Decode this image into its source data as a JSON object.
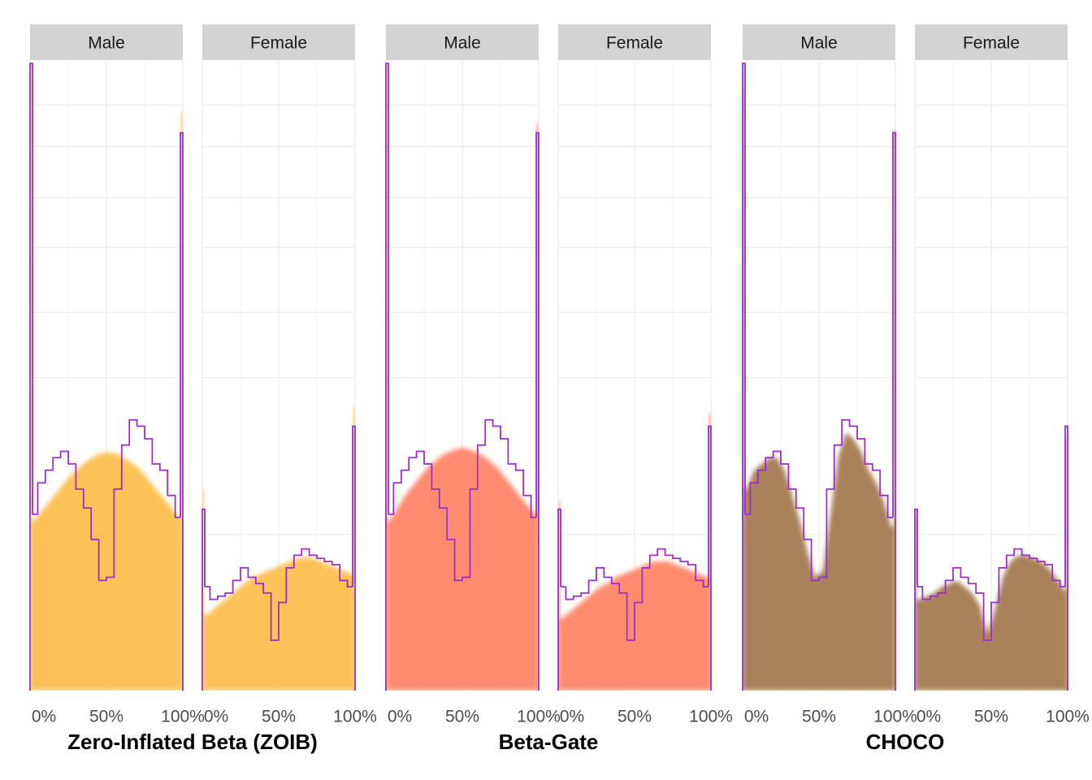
{
  "chart_data": [
    {
      "type": "area-step",
      "title": "Zero-Inflated Beta (ZOIB)",
      "color": "#fdbf4f",
      "line_color": "#9b30c8",
      "xlim": [
        0,
        100
      ],
      "ylim": [
        0,
        100
      ],
      "xticks": [
        {
          "value": 0,
          "label": "0%"
        },
        {
          "value": 50,
          "label": "50%"
        },
        {
          "value": 100,
          "label": "100%"
        }
      ],
      "y_grid": [
        24.8,
        49.7,
        60.1,
        70.4,
        78.3,
        86.4,
        93.0
      ],
      "bins": [
        0,
        5,
        10,
        15,
        20,
        25,
        30,
        35,
        40,
        45,
        50,
        55,
        60,
        65,
        70,
        75,
        80,
        85,
        90,
        95,
        100
      ],
      "panels": [
        {
          "label": "Male",
          "zero": 99.6,
          "one": 88.6,
          "predicted_zero": 99.6,
          "predicted_one": 92,
          "observed": [
            28,
            33,
            35,
            37,
            38,
            36,
            32,
            29,
            24,
            17.5,
            18,
            32,
            39,
            43,
            42,
            40,
            36,
            35,
            31,
            27.5
          ],
          "predicted": [
            27,
            28.5,
            30,
            31.5,
            33,
            34.5,
            35.5,
            36.5,
            37.3,
            37.8,
            37.8,
            37.5,
            36.8,
            36,
            35,
            33.5,
            32,
            30.5,
            29,
            27.5
          ]
        },
        {
          "label": "Female",
          "zero": 28.8,
          "one": 42,
          "predicted_zero": 32,
          "predicted_one": 45,
          "observed": [
            16.5,
            14.5,
            15,
            15.5,
            17.5,
            19.5,
            18,
            17,
            15.5,
            8,
            14,
            19.5,
            21.5,
            22.5,
            21.5,
            21,
            20.5,
            20,
            17.5,
            16.5
          ],
          "predicted": [
            12,
            13,
            14,
            15,
            16,
            17,
            18,
            18.5,
            19,
            19.5,
            20,
            20.5,
            21,
            21.2,
            21,
            20.5,
            20,
            19.5,
            19,
            18.5
          ]
        }
      ]
    },
    {
      "type": "area-step",
      "title": "Beta-Gate",
      "color": "#fe8567",
      "line_color": "#9b30c8",
      "xlim": [
        0,
        100
      ],
      "ylim": [
        0,
        100
      ],
      "xticks": [
        {
          "value": 0,
          "label": "0%"
        },
        {
          "value": 50,
          "label": "50%"
        },
        {
          "value": 100,
          "label": "100%"
        }
      ],
      "y_grid": [
        24.8,
        49.7,
        60.1,
        70.4,
        78.3,
        86.4,
        93.0
      ],
      "bins": [
        0,
        5,
        10,
        15,
        20,
        25,
        30,
        35,
        40,
        45,
        50,
        55,
        60,
        65,
        70,
        75,
        80,
        85,
        90,
        95,
        100
      ],
      "panels": [
        {
          "label": "Male",
          "zero": 99.6,
          "one": 88.6,
          "predicted_zero": 99.6,
          "predicted_one": 90,
          "observed": [
            28,
            33,
            35,
            37,
            38,
            36,
            32,
            29,
            24,
            17.5,
            18,
            32,
            39,
            43,
            42,
            40,
            36,
            35,
            31,
            27.5
          ],
          "predicted": [
            27,
            29,
            31,
            32.5,
            34,
            35.5,
            36.5,
            37.5,
            38,
            38.5,
            38.5,
            38,
            37.5,
            36.5,
            35.5,
            34,
            32.5,
            31,
            29.5,
            28
          ]
        },
        {
          "label": "Female",
          "zero": 28.8,
          "one": 42,
          "predicted_zero": 30,
          "predicted_one": 44,
          "observed": [
            16.5,
            14.5,
            15,
            15.5,
            17.5,
            19.5,
            18,
            17,
            15.5,
            8,
            14,
            19.5,
            21.5,
            22.5,
            21.5,
            21,
            20.5,
            20,
            17.5,
            16.5
          ],
          "predicted": [
            11.5,
            12.5,
            13.5,
            14.5,
            15.5,
            16.5,
            17,
            18,
            18.5,
            19,
            19.5,
            20,
            20.5,
            20.5,
            20.5,
            20,
            19.5,
            19,
            18.5,
            18
          ]
        }
      ]
    },
    {
      "type": "area-step",
      "title": "CHOCO",
      "color": "#a57b53",
      "line_color": "#9b30c8",
      "xlim": [
        0,
        100
      ],
      "ylim": [
        0,
        100
      ],
      "xticks": [
        {
          "value": 0,
          "label": "0%"
        },
        {
          "value": 50,
          "label": "50%"
        },
        {
          "value": 100,
          "label": "100%"
        }
      ],
      "y_grid": [
        24.8,
        49.7,
        60.1,
        70.4,
        78.3,
        86.4,
        93.0
      ],
      "bins": [
        0,
        5,
        10,
        15,
        20,
        25,
        30,
        35,
        40,
        45,
        50,
        55,
        60,
        65,
        70,
        75,
        80,
        85,
        90,
        95,
        100
      ],
      "panels": [
        {
          "label": "Male",
          "zero": 99.6,
          "one": 88.6,
          "predicted_zero": 96,
          "predicted_one": 89,
          "observed": [
            28,
            33,
            35,
            37,
            38,
            36,
            32,
            29,
            24,
            17.5,
            18,
            32,
            39,
            43,
            42,
            40,
            36,
            35,
            31,
            27.5
          ],
          "predicted": [
            32,
            35,
            36,
            37,
            37,
            35,
            31,
            27,
            22,
            18,
            19,
            28,
            37,
            41,
            40,
            38,
            35,
            33,
            30,
            26
          ]
        },
        {
          "label": "Female",
          "zero": 28.8,
          "one": 42,
          "predicted_zero": 28,
          "predicted_one": 40,
          "observed": [
            16.5,
            14.5,
            15,
            15.5,
            17.5,
            19.5,
            18,
            17,
            15.5,
            8,
            14,
            19.5,
            21.5,
            22.5,
            21.5,
            21,
            20.5,
            20,
            17.5,
            16.5
          ],
          "predicted": [
            14.5,
            15,
            15.5,
            16.5,
            17,
            17.5,
            16.5,
            15.5,
            13.5,
            9,
            13,
            18,
            20.5,
            21.5,
            21.5,
            21,
            20.5,
            19.5,
            18,
            16
          ]
        }
      ]
    }
  ]
}
